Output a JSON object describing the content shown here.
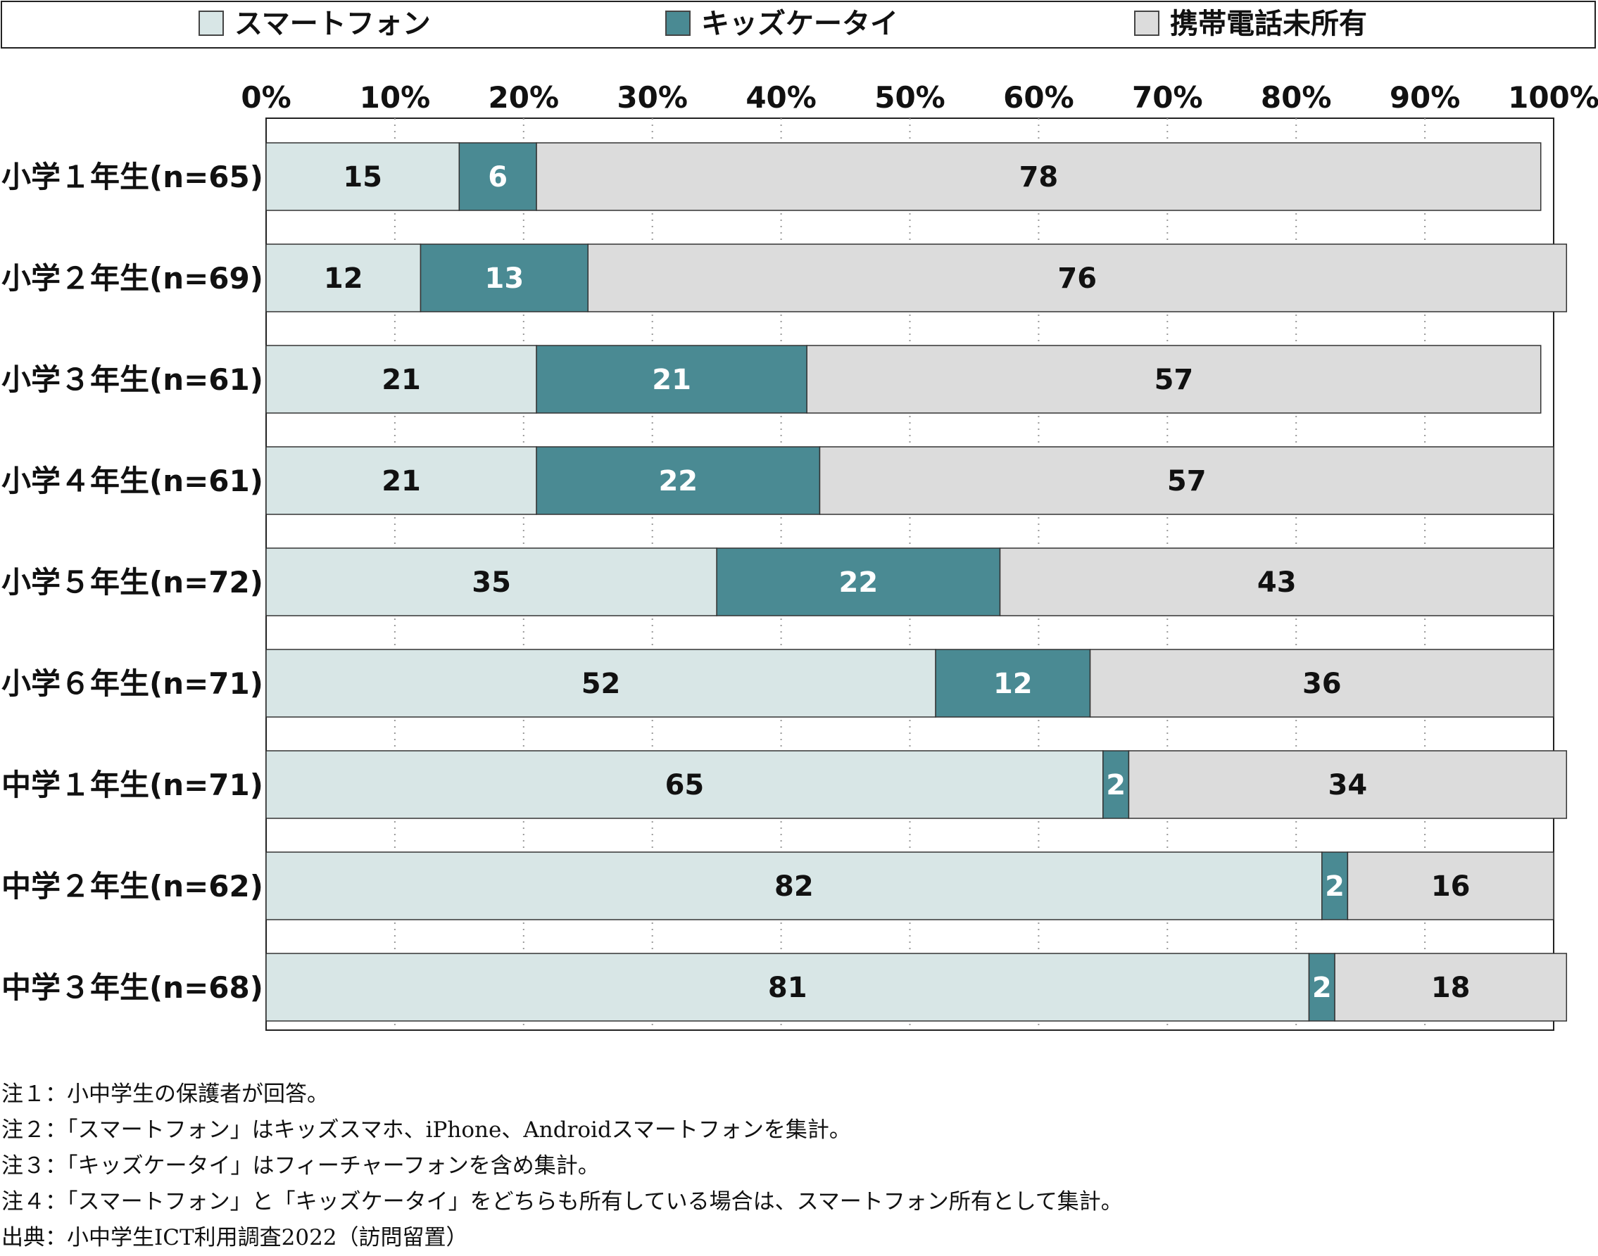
{
  "chart_data": {
    "type": "bar",
    "orientation": "horizontal",
    "stacked": true,
    "categories": [
      "小学１年生(n=65)",
      "小学２年生(n=69)",
      "小学３年生(n=61)",
      "小学４年生(n=61)",
      "小学５年生(n=72)",
      "小学６年生(n=71)",
      "中学１年生(n=71)",
      "中学２年生(n=62)",
      "中学３年生(n=68)"
    ],
    "series": [
      {
        "name": "スマートフォン",
        "color": "#d8e6e6",
        "label_color": "#111111",
        "values": [
          15,
          12,
          21,
          21,
          35,
          52,
          65,
          82,
          81
        ]
      },
      {
        "name": "キッズケータイ",
        "color": "#4a8a93",
        "label_color": "#ffffff",
        "values": [
          6,
          13,
          21,
          22,
          22,
          12,
          2,
          2,
          2
        ]
      },
      {
        "name": "携帯電話未所有",
        "color": "#dcdcdc",
        "label_color": "#111111",
        "values": [
          78,
          76,
          57,
          57,
          43,
          36,
          34,
          16,
          18
        ]
      }
    ],
    "xlim": [
      0,
      100
    ],
    "xticks": [
      "0%",
      "10%",
      "20%",
      "30%",
      "40%",
      "50%",
      "60%",
      "70%",
      "80%",
      "90%",
      "100%"
    ],
    "grid": "vertical-dotted",
    "legend": "top"
  },
  "notes": [
    "注１：小中学生の保護者が回答。",
    "注２：「スマートフォン」はキッズスマホ、iPhone、Androidスマートフォンを集計。",
    "注３：「キッズケータイ」はフィーチャーフォンを含め集計。",
    "注４：「スマートフォン」と「キッズケータイ」をどちらも所有している場合は、スマートフォン所有として集計。",
    "出典：小中学生ICT利用調査2022（訪問留置）"
  ]
}
